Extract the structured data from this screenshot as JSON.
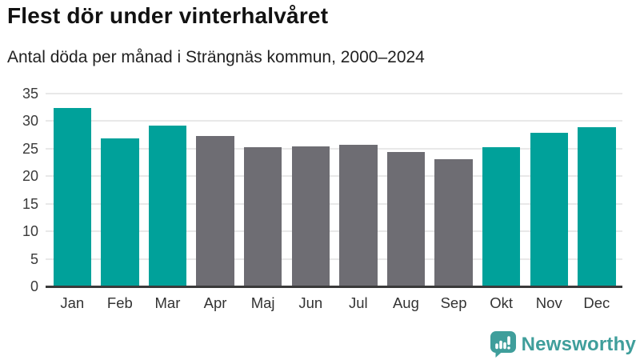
{
  "header": {
    "title": "Flest dör under vinterhalvåret",
    "subtitle": "Antal döda per månad i Strängnäs kommun, 2000–2024"
  },
  "chart_data": {
    "type": "bar",
    "categories": [
      "Jan",
      "Feb",
      "Mar",
      "Apr",
      "Maj",
      "Jun",
      "Jul",
      "Aug",
      "Sep",
      "Okt",
      "Nov",
      "Dec"
    ],
    "values": [
      32.2,
      26.7,
      29.0,
      27.2,
      25.1,
      25.2,
      25.5,
      24.3,
      23.0,
      25.1,
      27.8,
      28.7
    ],
    "bar_colors": [
      "teal",
      "teal",
      "teal",
      "gray",
      "gray",
      "gray",
      "gray",
      "gray",
      "gray",
      "teal",
      "teal",
      "teal"
    ],
    "title": "Flest dör under vinterhalvåret",
    "subtitle": "Antal döda per månad i Strängnäs kommun, 2000–2024",
    "xlabel": "",
    "ylabel": "",
    "ylim": [
      0,
      35
    ],
    "yticks": [
      0,
      5,
      10,
      15,
      20,
      25,
      30,
      35
    ],
    "grid": true,
    "legend": false
  },
  "colors": {
    "highlight": "#00a19a",
    "muted": "#6e6d73",
    "axis": "#3a3a3a",
    "gridline": "#e8e8e8",
    "brand": "#3f9e9b"
  },
  "branding": {
    "logo_text": "Newsworthy",
    "logo_icon": "bar-chart-speech-bubble-icon"
  }
}
